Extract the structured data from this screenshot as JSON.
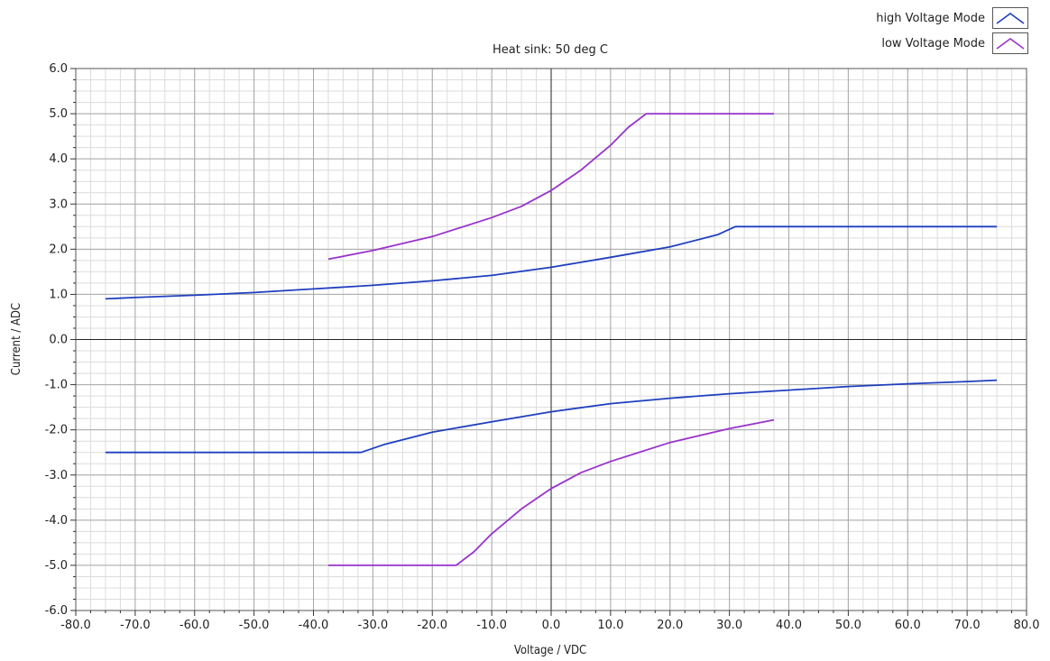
{
  "chart_data": {
    "type": "line",
    "title": "Heat sink: 50 deg C",
    "xlabel": "Voltage / VDC",
    "ylabel": "Current / ADC",
    "xlim": [
      -80,
      80
    ],
    "ylim": [
      -6,
      6
    ],
    "x_ticks": [
      "-80.0",
      "-70.0",
      "-60.0",
      "-50.0",
      "-40.0",
      "-30.0",
      "-20.0",
      "-10.0",
      "0.0",
      "10.0",
      "20.0",
      "30.0",
      "40.0",
      "50.0",
      "60.0",
      "70.0",
      "80.0"
    ],
    "y_ticks": [
      "6.0",
      "5.0",
      "4.0",
      "3.0",
      "2.0",
      "1.0",
      "0.0",
      "-1.0",
      "-2.0",
      "-3.0",
      "-4.0",
      "-5.0",
      "-6.0"
    ],
    "grid": true,
    "legend_position": "top-right",
    "series": [
      {
        "name": "high Voltage Mode",
        "color": "#1f3fbf",
        "segments": [
          [
            [
              -75,
              0.9
            ],
            [
              -70,
              0.93
            ],
            [
              -60,
              0.98
            ],
            [
              -50,
              1.04
            ],
            [
              -40,
              1.12
            ],
            [
              -30,
              1.2
            ],
            [
              -20,
              1.3
            ],
            [
              -10,
              1.42
            ],
            [
              0,
              1.6
            ],
            [
              10,
              1.82
            ],
            [
              20,
              2.05
            ],
            [
              28,
              2.32
            ],
            [
              31,
              2.5
            ],
            [
              75,
              2.5
            ]
          ],
          [
            [
              -75,
              -2.5
            ],
            [
              -32,
              -2.5
            ],
            [
              -28,
              -2.32
            ],
            [
              -20,
              -2.05
            ],
            [
              -10,
              -1.82
            ],
            [
              0,
              -1.6
            ],
            [
              10,
              -1.42
            ],
            [
              20,
              -1.3
            ],
            [
              30,
              -1.2
            ],
            [
              40,
              -1.12
            ],
            [
              50,
              -1.04
            ],
            [
              60,
              -0.98
            ],
            [
              70,
              -0.93
            ],
            [
              75,
              -0.9
            ]
          ]
        ]
      },
      {
        "name": "low Voltage Mode",
        "color": "#9933cc",
        "segments": [
          [
            [
              -37.5,
              1.78
            ],
            [
              -30,
              1.97
            ],
            [
              -20,
              2.28
            ],
            [
              -10,
              2.7
            ],
            [
              -5,
              2.95
            ],
            [
              0,
              3.3
            ],
            [
              5,
              3.75
            ],
            [
              10,
              4.3
            ],
            [
              13,
              4.7
            ],
            [
              16,
              5.0
            ],
            [
              37.5,
              5.0
            ]
          ],
          [
            [
              -37.5,
              -5.0
            ],
            [
              -16,
              -5.0
            ],
            [
              -13,
              -4.7
            ],
            [
              -10,
              -4.3
            ],
            [
              -5,
              -3.75
            ],
            [
              0,
              -3.3
            ],
            [
              5,
              -2.95
            ],
            [
              10,
              -2.7
            ],
            [
              20,
              -2.28
            ],
            [
              30,
              -1.97
            ],
            [
              37.5,
              -1.78
            ]
          ]
        ]
      }
    ]
  }
}
